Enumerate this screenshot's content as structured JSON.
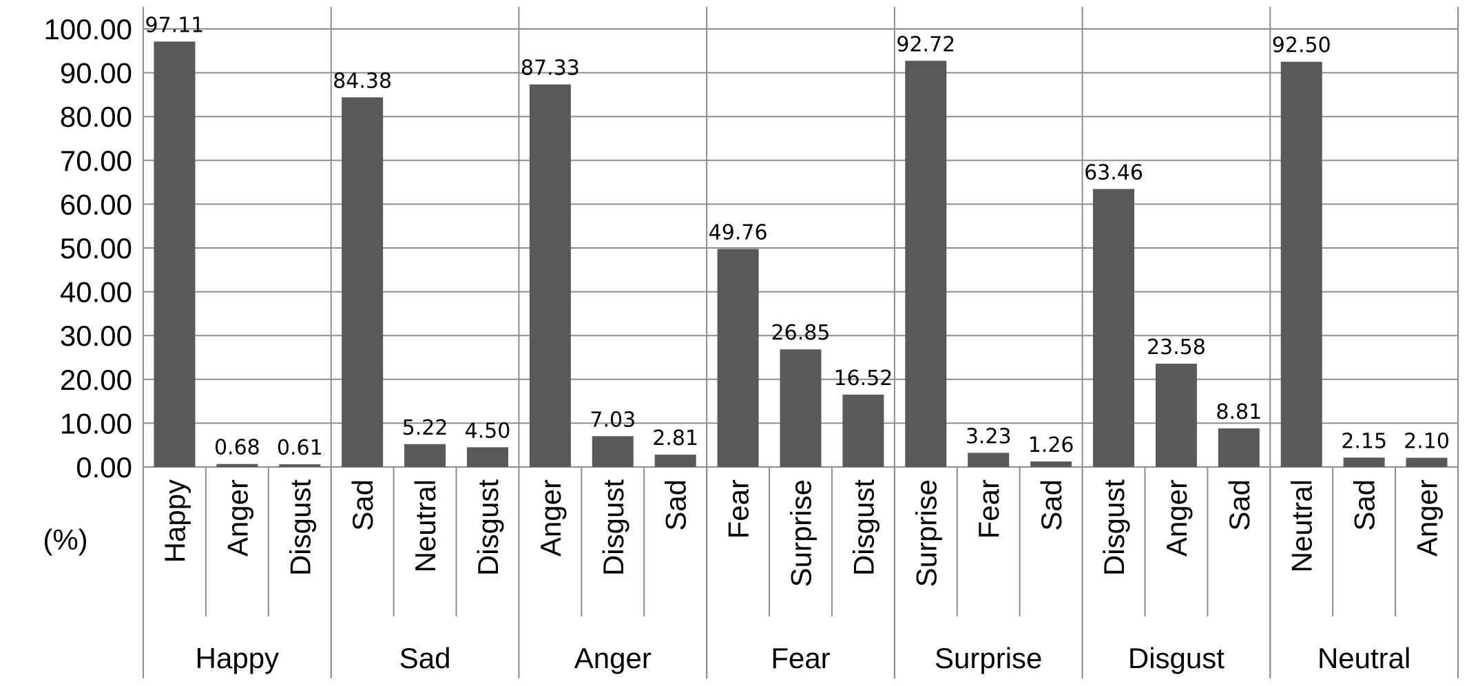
{
  "chart_data": {
    "type": "bar",
    "ylabel": "(%)",
    "ylim": [
      0,
      100
    ],
    "ytick_labels": [
      "0.00",
      "10.00",
      "20.00",
      "30.00",
      "40.00",
      "50.00",
      "60.00",
      "70.00",
      "80.00",
      "90.00",
      "100.00"
    ],
    "grid": true,
    "bar_color": "#595959",
    "groups": [
      {
        "name": "Happy",
        "categories": [
          "Happy",
          "Anger",
          "Disgust"
        ],
        "values": [
          97.11,
          0.68,
          0.61
        ],
        "labels": [
          "97.11",
          "0.68",
          "0.61"
        ]
      },
      {
        "name": "Sad",
        "categories": [
          "Sad",
          "Neutral",
          "Disgust"
        ],
        "values": [
          84.38,
          5.22,
          4.5
        ],
        "labels": [
          "84.38",
          "5.22",
          "4.50"
        ]
      },
      {
        "name": "Anger",
        "categories": [
          "Anger",
          "Disgust",
          "Sad"
        ],
        "values": [
          87.33,
          7.03,
          2.81
        ],
        "labels": [
          "87.33",
          "7.03",
          "2.81"
        ]
      },
      {
        "name": "Fear",
        "categories": [
          "Fear",
          "Surprise",
          "Disgust"
        ],
        "values": [
          49.76,
          26.85,
          16.52
        ],
        "labels": [
          "49.76",
          "26.85",
          "16.52"
        ]
      },
      {
        "name": "Surprise",
        "categories": [
          "Surprise",
          "Fear",
          "Sad"
        ],
        "values": [
          92.72,
          3.23,
          1.26
        ],
        "labels": [
          "92.72",
          "3.23",
          "1.26"
        ]
      },
      {
        "name": "Disgust",
        "categories": [
          "Disgust",
          "Anger",
          "Sad"
        ],
        "values": [
          63.46,
          23.58,
          8.81
        ],
        "labels": [
          "63.46",
          "23.58",
          "8.81"
        ]
      },
      {
        "name": "Neutral",
        "categories": [
          "Neutral",
          "Sad",
          "Anger"
        ],
        "values": [
          92.5,
          2.15,
          2.1
        ],
        "labels": [
          "92.50",
          "2.15",
          "2.10"
        ]
      }
    ]
  }
}
